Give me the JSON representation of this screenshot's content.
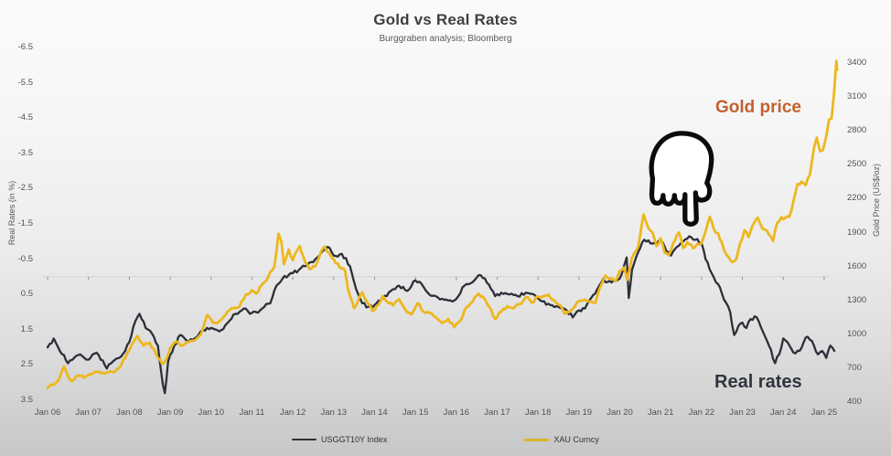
{
  "title": "Gold vs Real Rates",
  "subtitle": "Burggraben analysis; Bloomberg",
  "annotations": {
    "gold_price_label": "Gold price",
    "gold_price_color": "#c2622e",
    "real_rates_label": "Real rates",
    "real_rates_color": "#30343d",
    "pointer_icon": "hand-pointing-down-icon"
  },
  "legend": {
    "position": "bottom-center",
    "items": [
      {
        "label": "USGGT10Y Index",
        "color": "#2b2f38"
      },
      {
        "label": "XAU Curncy",
        "color": "#d8b42e"
      }
    ]
  },
  "chart_data": {
    "type": "line",
    "title": "Gold vs Real Rates",
    "subtitle": "Burggraben analysis; Bloomberg",
    "grid": "single horizontal line at left-axis 0 with yearly tick marks",
    "x_axis": {
      "start_year": 2006,
      "end_year": 2025.35,
      "labels": [
        "Jan 06",
        "Jan 07",
        "Jan 08",
        "Jan 09",
        "Jan 10",
        "Jan 11",
        "Jan 12",
        "Jan 13",
        "Jan 14",
        "Jan 15",
        "Jan 16",
        "Jan 17",
        "Jan 18",
        "Jan 19",
        "Jan 20",
        "Jan 21",
        "Jan 22",
        "Jan 23",
        "Jan 24",
        "Jan 25"
      ]
    },
    "y_left": {
      "label": "Real Rates (in %)",
      "inverted": true,
      "ticks": [
        -6.5,
        -5.5,
        -4.5,
        -3.5,
        -2.5,
        -1.5,
        -0.5,
        0.5,
        1.5,
        2.5,
        3.5
      ]
    },
    "y_right": {
      "label": "Gold Price (US$/oz)",
      "ticks": [
        3400,
        3100,
        2800,
        2500,
        2200,
        1900,
        1600,
        1300,
        1000,
        700,
        400
      ]
    },
    "series": [
      {
        "name": "USGGT10Y Index",
        "axis": "left",
        "color": "#2b2f38",
        "points": [
          [
            2006.0,
            2.0
          ],
          [
            2006.15,
            1.75
          ],
          [
            2006.3,
            2.1
          ],
          [
            2006.5,
            2.45
          ],
          [
            2006.65,
            2.3
          ],
          [
            2006.8,
            2.2
          ],
          [
            2007.0,
            2.35
          ],
          [
            2007.2,
            2.15
          ],
          [
            2007.45,
            2.6
          ],
          [
            2007.6,
            2.4
          ],
          [
            2007.75,
            2.3
          ],
          [
            2007.9,
            2.1
          ],
          [
            2008.0,
            1.85
          ],
          [
            2008.15,
            1.25
          ],
          [
            2008.25,
            1.05
          ],
          [
            2008.4,
            1.45
          ],
          [
            2008.55,
            1.6
          ],
          [
            2008.7,
            1.95
          ],
          [
            2008.82,
            3.05
          ],
          [
            2008.87,
            3.3
          ],
          [
            2008.95,
            2.4
          ],
          [
            2009.1,
            1.95
          ],
          [
            2009.25,
            1.65
          ],
          [
            2009.45,
            1.85
          ],
          [
            2009.6,
            1.75
          ],
          [
            2009.8,
            1.5
          ],
          [
            2010.0,
            1.45
          ],
          [
            2010.2,
            1.55
          ],
          [
            2010.45,
            1.25
          ],
          [
            2010.6,
            1.05
          ],
          [
            2010.8,
            0.9
          ],
          [
            2010.95,
            1.05
          ],
          [
            2011.1,
            1.0
          ],
          [
            2011.25,
            0.9
          ],
          [
            2011.45,
            0.75
          ],
          [
            2011.6,
            0.25
          ],
          [
            2011.75,
            0.05
          ],
          [
            2011.9,
            -0.05
          ],
          [
            2012.0,
            -0.1
          ],
          [
            2012.2,
            -0.25
          ],
          [
            2012.4,
            -0.4
          ],
          [
            2012.6,
            -0.55
          ],
          [
            2012.85,
            -0.85
          ],
          [
            2013.0,
            -0.6
          ],
          [
            2013.2,
            -0.65
          ],
          [
            2013.4,
            -0.3
          ],
          [
            2013.55,
            0.35
          ],
          [
            2013.7,
            0.75
          ],
          [
            2013.85,
            0.85
          ],
          [
            2014.0,
            0.8
          ],
          [
            2014.2,
            0.6
          ],
          [
            2014.4,
            0.4
          ],
          [
            2014.6,
            0.25
          ],
          [
            2014.8,
            0.4
          ],
          [
            2015.0,
            0.1
          ],
          [
            2015.15,
            0.2
          ],
          [
            2015.3,
            0.45
          ],
          [
            2015.5,
            0.55
          ],
          [
            2015.7,
            0.65
          ],
          [
            2015.9,
            0.7
          ],
          [
            2016.05,
            0.55
          ],
          [
            2016.2,
            0.25
          ],
          [
            2016.4,
            0.15
          ],
          [
            2016.55,
            -0.05
          ],
          [
            2016.7,
            0.05
          ],
          [
            2016.85,
            0.35
          ],
          [
            2016.95,
            0.55
          ],
          [
            2017.1,
            0.45
          ],
          [
            2017.3,
            0.5
          ],
          [
            2017.5,
            0.55
          ],
          [
            2017.7,
            0.45
          ],
          [
            2017.9,
            0.5
          ],
          [
            2018.1,
            0.7
          ],
          [
            2018.3,
            0.8
          ],
          [
            2018.5,
            0.85
          ],
          [
            2018.7,
            0.95
          ],
          [
            2018.85,
            1.15
          ],
          [
            2019.0,
            0.95
          ],
          [
            2019.15,
            0.9
          ],
          [
            2019.3,
            0.6
          ],
          [
            2019.45,
            0.35
          ],
          [
            2019.6,
            0.05
          ],
          [
            2019.7,
            0.15
          ],
          [
            2019.85,
            0.1
          ],
          [
            2020.0,
            0.05
          ],
          [
            2020.1,
            -0.3
          ],
          [
            2020.17,
            -0.55
          ],
          [
            2020.22,
            0.6
          ],
          [
            2020.3,
            -0.2
          ],
          [
            2020.45,
            -0.7
          ],
          [
            2020.6,
            -1.05
          ],
          [
            2020.75,
            -0.95
          ],
          [
            2020.9,
            -0.9
          ],
          [
            2021.0,
            -1.05
          ],
          [
            2021.15,
            -0.7
          ],
          [
            2021.25,
            -0.6
          ],
          [
            2021.4,
            -0.85
          ],
          [
            2021.55,
            -1.0
          ],
          [
            2021.7,
            -1.15
          ],
          [
            2021.85,
            -1.05
          ],
          [
            2022.0,
            -0.95
          ],
          [
            2022.1,
            -0.5
          ],
          [
            2022.25,
            -0.1
          ],
          [
            2022.35,
            0.15
          ],
          [
            2022.45,
            0.3
          ],
          [
            2022.55,
            0.65
          ],
          [
            2022.7,
            1.0
          ],
          [
            2022.8,
            1.65
          ],
          [
            2022.9,
            1.4
          ],
          [
            2023.0,
            1.3
          ],
          [
            2023.1,
            1.45
          ],
          [
            2023.2,
            1.2
          ],
          [
            2023.35,
            1.15
          ],
          [
            2023.5,
            1.55
          ],
          [
            2023.65,
            1.95
          ],
          [
            2023.8,
            2.45
          ],
          [
            2023.9,
            2.2
          ],
          [
            2024.0,
            1.75
          ],
          [
            2024.1,
            1.85
          ],
          [
            2024.25,
            2.15
          ],
          [
            2024.4,
            2.1
          ],
          [
            2024.5,
            1.85
          ],
          [
            2024.6,
            1.7
          ],
          [
            2024.75,
            1.95
          ],
          [
            2024.85,
            2.2
          ],
          [
            2024.95,
            2.1
          ],
          [
            2025.05,
            2.3
          ],
          [
            2025.15,
            1.95
          ],
          [
            2025.25,
            2.1
          ]
        ]
      },
      {
        "name": "XAU Curncy",
        "axis": "right",
        "color": "#edb71e",
        "points": [
          [
            2006.0,
            525
          ],
          [
            2006.1,
            555
          ],
          [
            2006.25,
            585
          ],
          [
            2006.4,
            715
          ],
          [
            2006.5,
            630
          ],
          [
            2006.6,
            585
          ],
          [
            2006.75,
            635
          ],
          [
            2006.9,
            615
          ],
          [
            2007.0,
            640
          ],
          [
            2007.15,
            665
          ],
          [
            2007.3,
            655
          ],
          [
            2007.45,
            660
          ],
          [
            2007.6,
            665
          ],
          [
            2007.75,
            700
          ],
          [
            2007.9,
            790
          ],
          [
            2008.0,
            860
          ],
          [
            2008.15,
            960
          ],
          [
            2008.2,
            985
          ],
          [
            2008.35,
            900
          ],
          [
            2008.5,
            925
          ],
          [
            2008.65,
            830
          ],
          [
            2008.8,
            740
          ],
          [
            2008.9,
            775
          ],
          [
            2009.0,
            880
          ],
          [
            2009.15,
            935
          ],
          [
            2009.3,
            900
          ],
          [
            2009.45,
            930
          ],
          [
            2009.6,
            945
          ],
          [
            2009.75,
            1000
          ],
          [
            2009.9,
            1170
          ],
          [
            2010.05,
            1100
          ],
          [
            2010.2,
            1115
          ],
          [
            2010.4,
            1200
          ],
          [
            2010.55,
            1230
          ],
          [
            2010.7,
            1250
          ],
          [
            2010.85,
            1350
          ],
          [
            2011.0,
            1390
          ],
          [
            2011.1,
            1360
          ],
          [
            2011.25,
            1440
          ],
          [
            2011.4,
            1510
          ],
          [
            2011.55,
            1600
          ],
          [
            2011.65,
            1890
          ],
          [
            2011.72,
            1820
          ],
          [
            2011.78,
            1620
          ],
          [
            2011.9,
            1750
          ],
          [
            2012.0,
            1655
          ],
          [
            2012.1,
            1740
          ],
          [
            2012.17,
            1780
          ],
          [
            2012.3,
            1640
          ],
          [
            2012.4,
            1580
          ],
          [
            2012.55,
            1600
          ],
          [
            2012.7,
            1740
          ],
          [
            2012.78,
            1775
          ],
          [
            2012.9,
            1715
          ],
          [
            2013.0,
            1665
          ],
          [
            2013.15,
            1590
          ],
          [
            2013.28,
            1560
          ],
          [
            2013.35,
            1400
          ],
          [
            2013.5,
            1230
          ],
          [
            2013.62,
            1320
          ],
          [
            2013.7,
            1370
          ],
          [
            2013.85,
            1270
          ],
          [
            2013.95,
            1205
          ],
          [
            2014.1,
            1260
          ],
          [
            2014.2,
            1340
          ],
          [
            2014.3,
            1290
          ],
          [
            2014.45,
            1255
          ],
          [
            2014.6,
            1310
          ],
          [
            2014.75,
            1220
          ],
          [
            2014.9,
            1175
          ],
          [
            2015.05,
            1275
          ],
          [
            2015.2,
            1200
          ],
          [
            2015.35,
            1190
          ],
          [
            2015.5,
            1150
          ],
          [
            2015.65,
            1100
          ],
          [
            2015.8,
            1135
          ],
          [
            2015.95,
            1062
          ],
          [
            2016.1,
            1120
          ],
          [
            2016.25,
            1240
          ],
          [
            2016.4,
            1290
          ],
          [
            2016.55,
            1360
          ],
          [
            2016.7,
            1310
          ],
          [
            2016.85,
            1220
          ],
          [
            2016.95,
            1135
          ],
          [
            2017.1,
            1200
          ],
          [
            2017.25,
            1250
          ],
          [
            2017.4,
            1230
          ],
          [
            2017.55,
            1265
          ],
          [
            2017.7,
            1330
          ],
          [
            2017.85,
            1280
          ],
          [
            2018.0,
            1335
          ],
          [
            2018.1,
            1330
          ],
          [
            2018.25,
            1350
          ],
          [
            2018.4,
            1300
          ],
          [
            2018.55,
            1255
          ],
          [
            2018.65,
            1180
          ],
          [
            2018.8,
            1210
          ],
          [
            2018.95,
            1280
          ],
          [
            2019.1,
            1300
          ],
          [
            2019.25,
            1290
          ],
          [
            2019.4,
            1275
          ],
          [
            2019.5,
            1400
          ],
          [
            2019.65,
            1520
          ],
          [
            2019.75,
            1490
          ],
          [
            2019.9,
            1470
          ],
          [
            2020.0,
            1560
          ],
          [
            2020.1,
            1590
          ],
          [
            2020.18,
            1480
          ],
          [
            2020.3,
            1680
          ],
          [
            2020.45,
            1770
          ],
          [
            2020.58,
            2060
          ],
          [
            2020.7,
            1940
          ],
          [
            2020.8,
            1900
          ],
          [
            2020.9,
            1780
          ],
          [
            2021.0,
            1850
          ],
          [
            2021.1,
            1720
          ],
          [
            2021.2,
            1700
          ],
          [
            2021.35,
            1830
          ],
          [
            2021.45,
            1900
          ],
          [
            2021.55,
            1765
          ],
          [
            2021.65,
            1815
          ],
          [
            2021.8,
            1760
          ],
          [
            2021.9,
            1800
          ],
          [
            2022.0,
            1805
          ],
          [
            2022.1,
            1910
          ],
          [
            2022.2,
            2040
          ],
          [
            2022.3,
            1930
          ],
          [
            2022.4,
            1895
          ],
          [
            2022.5,
            1810
          ],
          [
            2022.6,
            1710
          ],
          [
            2022.75,
            1640
          ],
          [
            2022.85,
            1665
          ],
          [
            2022.95,
            1810
          ],
          [
            2023.05,
            1920
          ],
          [
            2023.15,
            1860
          ],
          [
            2023.3,
            1995
          ],
          [
            2023.38,
            2030
          ],
          [
            2023.5,
            1930
          ],
          [
            2023.6,
            1915
          ],
          [
            2023.75,
            1825
          ],
          [
            2023.85,
            1985
          ],
          [
            2023.95,
            2035
          ],
          [
            2024.05,
            2030
          ],
          [
            2024.15,
            2040
          ],
          [
            2024.25,
            2180
          ],
          [
            2024.35,
            2330
          ],
          [
            2024.45,
            2350
          ],
          [
            2024.55,
            2320
          ],
          [
            2024.65,
            2410
          ],
          [
            2024.75,
            2650
          ],
          [
            2024.82,
            2740
          ],
          [
            2024.9,
            2620
          ],
          [
            2024.97,
            2630
          ],
          [
            2025.05,
            2750
          ],
          [
            2025.12,
            2900
          ],
          [
            2025.18,
            2910
          ],
          [
            2025.24,
            3120
          ],
          [
            2025.3,
            3420
          ],
          [
            2025.32,
            3340
          ]
        ]
      }
    ]
  }
}
